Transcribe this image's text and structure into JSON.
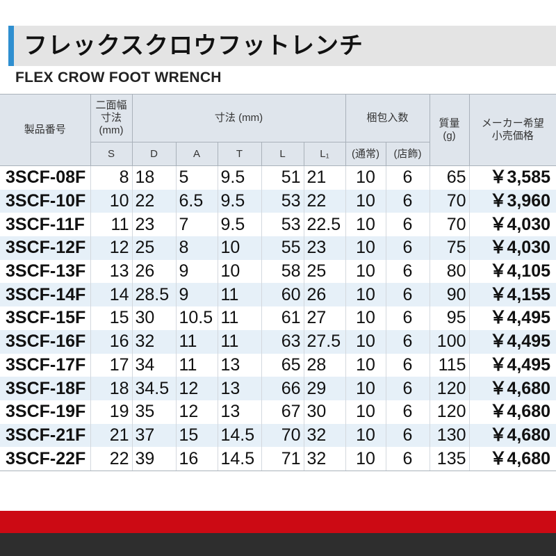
{
  "title": {
    "japanese": "フレックスクロウフットレンチ",
    "english": "FLEX CROW FOOT WRENCH"
  },
  "colors": {
    "accent_bar": "#2f8fd0",
    "header_bg": "#dfe5ec",
    "row_alt_bg": "#e6f0f8",
    "footer_red": "#cc0a14",
    "footer_dark": "#2e2e2e"
  },
  "table": {
    "headers": {
      "product_no": "製品番号",
      "across_flats": "二面幅\n寸法\n(mm)",
      "dimensions": "寸法 (mm)",
      "pack_qty": "梱包入数",
      "weight": "質量\n(g)",
      "price": "メーカー希望\n小売価格",
      "S": "S",
      "D": "D",
      "A": "A",
      "T": "T",
      "L": "L",
      "L1": "L₁",
      "normal": "(通常)",
      "store": "(店飾)"
    },
    "rows": [
      {
        "code": "3SCF-08F",
        "S": "8",
        "D": "18",
        "A": "5",
        "T": "9.5",
        "L": "51",
        "L1": "21",
        "normal": "10",
        "store": "6",
        "weight": "65",
        "price": "￥3,585"
      },
      {
        "code": "3SCF-10F",
        "S": "10",
        "D": "22",
        "A": "6.5",
        "T": "9.5",
        "L": "53",
        "L1": "22",
        "normal": "10",
        "store": "6",
        "weight": "70",
        "price": "￥3,960"
      },
      {
        "code": "3SCF-11F",
        "S": "11",
        "D": "23",
        "A": "7",
        "T": "9.5",
        "L": "53",
        "L1": "22.5",
        "normal": "10",
        "store": "6",
        "weight": "70",
        "price": "￥4,030"
      },
      {
        "code": "3SCF-12F",
        "S": "12",
        "D": "25",
        "A": "8",
        "T": "10",
        "L": "55",
        "L1": "23",
        "normal": "10",
        "store": "6",
        "weight": "75",
        "price": "￥4,030"
      },
      {
        "code": "3SCF-13F",
        "S": "13",
        "D": "26",
        "A": "9",
        "T": "10",
        "L": "58",
        "L1": "25",
        "normal": "10",
        "store": "6",
        "weight": "80",
        "price": "￥4,105"
      },
      {
        "code": "3SCF-14F",
        "S": "14",
        "D": "28.5",
        "A": "9",
        "T": "11",
        "L": "60",
        "L1": "26",
        "normal": "10",
        "store": "6",
        "weight": "90",
        "price": "￥4,155"
      },
      {
        "code": "3SCF-15F",
        "S": "15",
        "D": "30",
        "A": "10.5",
        "T": "11",
        "L": "61",
        "L1": "27",
        "normal": "10",
        "store": "6",
        "weight": "95",
        "price": "￥4,495"
      },
      {
        "code": "3SCF-16F",
        "S": "16",
        "D": "32",
        "A": "11",
        "T": "11",
        "L": "63",
        "L1": "27.5",
        "normal": "10",
        "store": "6",
        "weight": "100",
        "price": "￥4,495"
      },
      {
        "code": "3SCF-17F",
        "S": "17",
        "D": "34",
        "A": "11",
        "T": "13",
        "L": "65",
        "L1": "28",
        "normal": "10",
        "store": "6",
        "weight": "115",
        "price": "￥4,495"
      },
      {
        "code": "3SCF-18F",
        "S": "18",
        "D": "34.5",
        "A": "12",
        "T": "13",
        "L": "66",
        "L1": "29",
        "normal": "10",
        "store": "6",
        "weight": "120",
        "price": "￥4,680"
      },
      {
        "code": "3SCF-19F",
        "S": "19",
        "D": "35",
        "A": "12",
        "T": "13",
        "L": "67",
        "L1": "30",
        "normal": "10",
        "store": "6",
        "weight": "120",
        "price": "￥4,680"
      },
      {
        "code": "3SCF-21F",
        "S": "21",
        "D": "37",
        "A": "15",
        "T": "14.5",
        "L": "70",
        "L1": "32",
        "normal": "10",
        "store": "6",
        "weight": "130",
        "price": "￥4,680"
      },
      {
        "code": "3SCF-22F",
        "S": "22",
        "D": "39",
        "A": "16",
        "T": "14.5",
        "L": "71",
        "L1": "32",
        "normal": "10",
        "store": "6",
        "weight": "135",
        "price": "￥4,680"
      }
    ]
  }
}
